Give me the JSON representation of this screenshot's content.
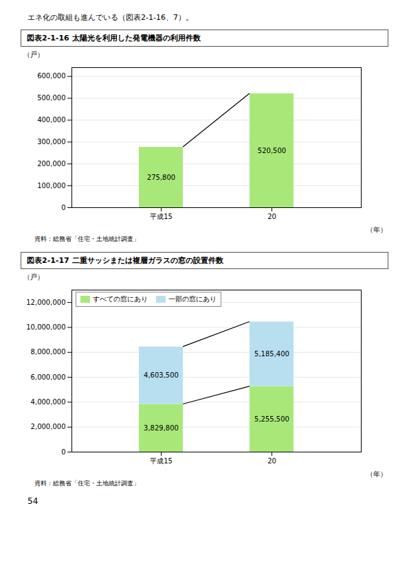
{
  "intro_text": "エネ化の取組も進んでいる（図表2-1-16、7）。",
  "page_number": "54",
  "chart_data": [
    {
      "type": "bar",
      "title": "図表2-1-16 太陽光を利用した発電機器の利用件数",
      "ylabel": "（戸）",
      "xlabel": "（年）",
      "source": "資料：総務省「住宅・土地統計調査」",
      "categories": [
        "平成15",
        "20"
      ],
      "values": [
        275800,
        520500
      ],
      "value_labels": [
        "275,800",
        "520,500"
      ],
      "data_labels": true,
      "color": "#a8e878",
      "ylim": [
        0,
        640000
      ],
      "yticks": [
        0,
        {
          "value": 100000,
          "label": "100,000"
        },
        {
          "value": 200000,
          "label": "200,000"
        },
        {
          "value": 300000,
          "label": "300,000"
        },
        {
          "value": 400000,
          "label": "400,000"
        },
        {
          "value": 500000,
          "label": "500,000"
        },
        {
          "value": 600000,
          "label": "600,000"
        }
      ],
      "grid": true
    },
    {
      "type": "bar",
      "title": "図表2-1-17 二重サッシまたは複層ガラスの窓の設置件数",
      "ylabel": "（戸）",
      "xlabel": "（年）",
      "source": "資料：総務省「住宅・土地統計調査」",
      "categories": [
        "平成15",
        "20"
      ],
      "series": [
        {
          "name": "すべての窓にあり",
          "color": "#a8e878",
          "values": [
            3829800,
            5255500
          ],
          "value_labels": [
            "3,829,800",
            "5,255,500"
          ]
        },
        {
          "name": "一部の窓にあり",
          "color": "#b8dff0",
          "values": [
            4603500,
            5185400
          ],
          "value_labels": [
            "4,603,500",
            "5,185,400"
          ]
        }
      ],
      "stacked": true,
      "data_labels": true,
      "legend": "upper left",
      "ylim": [
        0,
        13000000
      ],
      "yticks": [
        0,
        {
          "value": 2000000,
          "label": "2,000,000"
        },
        {
          "value": 4000000,
          "label": "4,000,000"
        },
        {
          "value": 6000000,
          "label": "6,000,000"
        },
        {
          "value": 8000000,
          "label": "8,000,000"
        },
        {
          "value": 10000000,
          "label": "10,000,000"
        },
        {
          "value": 12000000,
          "label": "12,000,000"
        }
      ],
      "grid": true
    }
  ]
}
